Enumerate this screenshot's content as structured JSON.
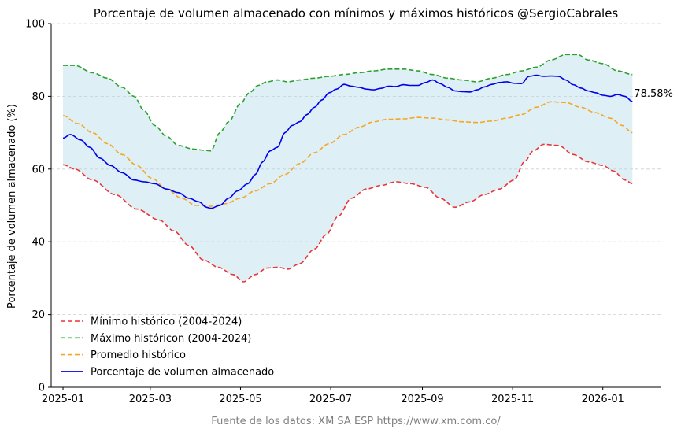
{
  "chart_data": {
    "type": "line",
    "title": "Porcentaje de volumen almacenado con mínimos y máximos históricos @SergioCabrales",
    "xlabel": "",
    "ylabel": "Porcentaje de volumen almacenado (%)",
    "ylim": [
      0,
      100
    ],
    "yticks": [
      0,
      20,
      40,
      60,
      80,
      100
    ],
    "xlim": [
      -8,
      404
    ],
    "xticks": [
      {
        "label": "2025-01",
        "day": 0
      },
      {
        "label": "2025-03",
        "day": 59
      },
      {
        "label": "2025-05",
        "day": 120
      },
      {
        "label": "2025-07",
        "day": 181
      },
      {
        "label": "2025-09",
        "day": 243
      },
      {
        "label": "2025-11",
        "day": 304
      },
      {
        "label": "2026-01",
        "day": 365
      }
    ],
    "grid": "horizontal dashed",
    "legend_position": "lower-left",
    "source_note": "Fuente de los datos: XM SA ESP https://www.xm.com.co/",
    "annotation": "78.58%",
    "x_unit": "days since 2025-01-01",
    "series": [
      {
        "name": "Mínimo histórico (2004-2024)",
        "style": "dashed",
        "color": "#e8363a",
        "points": [
          [
            0,
            61.2
          ],
          [
            8,
            60
          ],
          [
            20,
            57
          ],
          [
            35,
            53
          ],
          [
            50,
            49
          ],
          [
            65,
            46
          ],
          [
            75,
            43
          ],
          [
            85,
            39
          ],
          [
            95,
            35
          ],
          [
            105,
            33
          ],
          [
            115,
            31
          ],
          [
            122,
            29
          ],
          [
            130,
            31
          ],
          [
            138,
            32.8
          ],
          [
            145,
            33
          ],
          [
            152,
            32.5
          ],
          [
            160,
            34
          ],
          [
            170,
            38
          ],
          [
            178,
            42
          ],
          [
            186,
            47
          ],
          [
            195,
            52
          ],
          [
            205,
            54.5
          ],
          [
            215,
            55.5
          ],
          [
            225,
            56.5
          ],
          [
            235,
            56
          ],
          [
            245,
            55
          ],
          [
            255,
            52
          ],
          [
            265,
            49.5
          ],
          [
            275,
            51
          ],
          [
            285,
            53
          ],
          [
            295,
            54.5
          ],
          [
            305,
            57
          ],
          [
            312,
            62
          ],
          [
            318,
            65
          ],
          [
            325,
            66.8
          ],
          [
            335,
            66.5
          ],
          [
            345,
            64
          ],
          [
            355,
            62
          ],
          [
            365,
            61
          ],
          [
            372,
            59.5
          ],
          [
            380,
            57
          ],
          [
            385,
            56
          ]
        ]
      },
      {
        "name": "Máximo históricon (2004-2024)",
        "style": "dashed",
        "color": "#2ca02c",
        "points": [
          [
            0,
            88.5
          ],
          [
            8,
            88.5
          ],
          [
            20,
            86.5
          ],
          [
            30,
            85
          ],
          [
            40,
            82.5
          ],
          [
            48,
            80
          ],
          [
            55,
            76
          ],
          [
            62,
            72
          ],
          [
            70,
            69
          ],
          [
            78,
            66.5
          ],
          [
            88,
            65.5
          ],
          [
            95,
            65.2
          ],
          [
            100,
            65
          ],
          [
            106,
            70
          ],
          [
            112,
            73
          ],
          [
            120,
            78
          ],
          [
            126,
            81
          ],
          [
            132,
            83
          ],
          [
            138,
            84
          ],
          [
            145,
            84.5
          ],
          [
            152,
            84
          ],
          [
            160,
            84.5
          ],
          [
            170,
            85
          ],
          [
            180,
            85.5
          ],
          [
            190,
            86
          ],
          [
            200,
            86.5
          ],
          [
            210,
            87
          ],
          [
            220,
            87.5
          ],
          [
            230,
            87.5
          ],
          [
            240,
            87
          ],
          [
            250,
            86
          ],
          [
            260,
            85
          ],
          [
            270,
            84.5
          ],
          [
            280,
            84
          ],
          [
            290,
            85
          ],
          [
            300,
            86
          ],
          [
            310,
            87
          ],
          [
            320,
            88
          ],
          [
            330,
            90
          ],
          [
            340,
            91.5
          ],
          [
            348,
            91.5
          ],
          [
            355,
            90
          ],
          [
            365,
            89
          ],
          [
            375,
            87
          ],
          [
            385,
            86
          ]
        ]
      },
      {
        "name": "Promedio histórico",
        "style": "dashed",
        "color": "#f5a623",
        "points": [
          [
            0,
            74.7
          ],
          [
            10,
            72.5
          ],
          [
            20,
            70
          ],
          [
            30,
            67
          ],
          [
            40,
            64
          ],
          [
            50,
            61
          ],
          [
            60,
            57.5
          ],
          [
            70,
            54.5
          ],
          [
            80,
            52
          ],
          [
            90,
            50
          ],
          [
            100,
            49.8
          ],
          [
            110,
            50.5
          ],
          [
            120,
            52
          ],
          [
            130,
            54
          ],
          [
            140,
            56
          ],
          [
            150,
            58.5
          ],
          [
            160,
            61.5
          ],
          [
            170,
            64.5
          ],
          [
            180,
            67
          ],
          [
            190,
            69.5
          ],
          [
            200,
            71.5
          ],
          [
            210,
            73
          ],
          [
            220,
            73.7
          ],
          [
            230,
            73.8
          ],
          [
            240,
            74.2
          ],
          [
            250,
            74
          ],
          [
            260,
            73.5
          ],
          [
            270,
            73
          ],
          [
            280,
            72.8
          ],
          [
            290,
            73.2
          ],
          [
            300,
            74
          ],
          [
            310,
            75
          ],
          [
            320,
            77
          ],
          [
            330,
            78.5
          ],
          [
            340,
            78.3
          ],
          [
            350,
            77
          ],
          [
            360,
            75.5
          ],
          [
            370,
            74
          ],
          [
            378,
            72
          ],
          [
            385,
            70
          ]
        ]
      },
      {
        "name": "Porcentaje de volumen almacenado",
        "style": "solid",
        "color": "#0000ee",
        "points": [
          [
            0,
            68.5
          ],
          [
            5,
            69.5
          ],
          [
            12,
            68
          ],
          [
            18,
            66
          ],
          [
            25,
            63
          ],
          [
            32,
            61
          ],
          [
            40,
            59
          ],
          [
            48,
            57
          ],
          [
            55,
            56.5
          ],
          [
            62,
            56
          ],
          [
            70,
            54.5
          ],
          [
            78,
            53.5
          ],
          [
            85,
            52
          ],
          [
            92,
            51
          ],
          [
            97,
            49.5
          ],
          [
            100,
            49.2
          ],
          [
            106,
            50
          ],
          [
            112,
            52
          ],
          [
            118,
            54
          ],
          [
            125,
            56
          ],
          [
            130,
            58.5
          ],
          [
            135,
            62
          ],
          [
            140,
            65
          ],
          [
            145,
            66
          ],
          [
            150,
            70
          ],
          [
            155,
            72
          ],
          [
            160,
            73
          ],
          [
            165,
            75
          ],
          [
            170,
            77
          ],
          [
            175,
            79
          ],
          [
            180,
            81
          ],
          [
            185,
            82
          ],
          [
            190,
            83.3
          ],
          [
            195,
            82.8
          ],
          [
            200,
            82.5
          ],
          [
            205,
            82
          ],
          [
            210,
            81.8
          ],
          [
            215,
            82.2
          ],
          [
            220,
            82.8
          ],
          [
            225,
            82.7
          ],
          [
            230,
            83.2
          ],
          [
            235,
            83
          ],
          [
            240,
            83
          ],
          [
            245,
            83.8
          ],
          [
            250,
            84.5
          ],
          [
            255,
            83.5
          ],
          [
            260,
            82.5
          ],
          [
            265,
            81.5
          ],
          [
            270,
            81.3
          ],
          [
            275,
            81.2
          ],
          [
            280,
            81.8
          ],
          [
            285,
            82.6
          ],
          [
            290,
            83.3
          ],
          [
            295,
            83.8
          ],
          [
            300,
            84
          ],
          [
            305,
            83.6
          ],
          [
            310,
            83.5
          ],
          [
            315,
            85.5
          ],
          [
            320,
            85.8
          ],
          [
            325,
            85.5
          ],
          [
            330,
            85.6
          ],
          [
            335,
            85.5
          ],
          [
            340,
            84.5
          ],
          [
            345,
            83.2
          ],
          [
            350,
            82.3
          ],
          [
            355,
            81.5
          ],
          [
            360,
            81
          ],
          [
            365,
            80.3
          ],
          [
            370,
            80
          ],
          [
            375,
            80.5
          ],
          [
            380,
            80
          ],
          [
            385,
            78.58
          ]
        ]
      }
    ]
  }
}
